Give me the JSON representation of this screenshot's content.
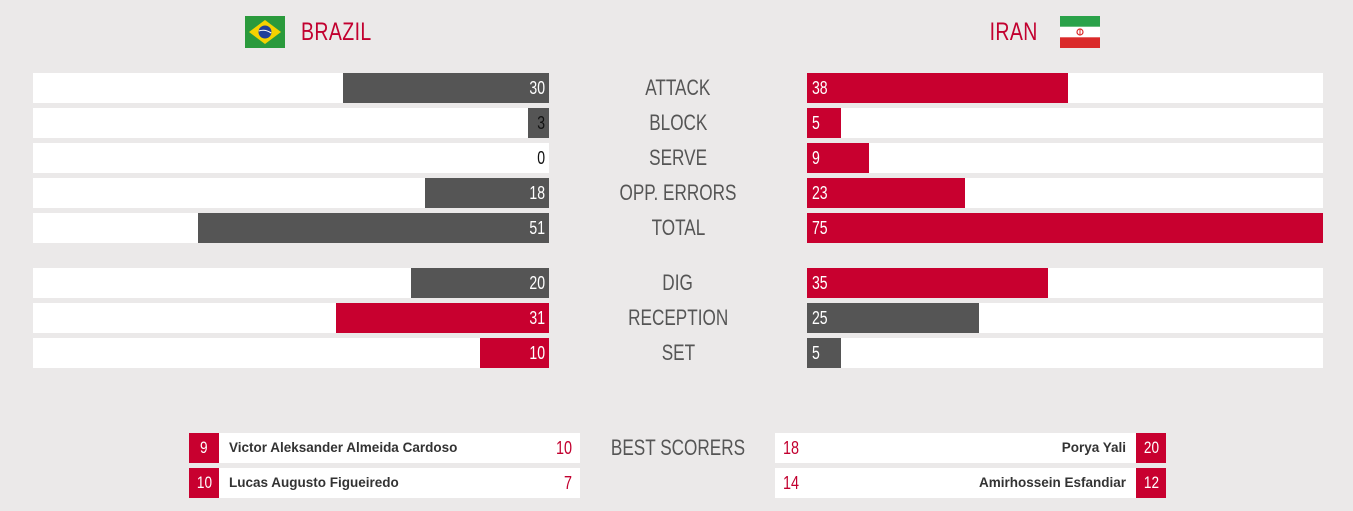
{
  "teams": {
    "home": {
      "name": "BRAZIL",
      "flag_icon": "brazil-flag-icon"
    },
    "away": {
      "name": "IRAN",
      "flag_icon": "iran-flag-icon"
    }
  },
  "colors": {
    "accent_red": "#c8002f",
    "bar_gray": "#555555",
    "background": "#ebe9e9"
  },
  "stats_max": 75,
  "stats": [
    {
      "label": "ATTACK",
      "home": "30",
      "away": "38",
      "home_color": "gray",
      "away_color": "red"
    },
    {
      "label": "BLOCK",
      "home": "3",
      "away": "5",
      "home_color": "gray",
      "away_color": "red"
    },
    {
      "label": "SERVE",
      "home": "0",
      "away": "9",
      "home_color": "gray",
      "away_color": "red"
    },
    {
      "label": "OPP. ERRORS",
      "home": "18",
      "away": "23",
      "home_color": "gray",
      "away_color": "red"
    },
    {
      "label": "TOTAL",
      "home": "51",
      "away": "75",
      "home_color": "gray",
      "away_color": "red"
    },
    {
      "label": "DIG",
      "home": "20",
      "away": "35",
      "home_color": "gray",
      "away_color": "red"
    },
    {
      "label": "RECEPTION",
      "home": "31",
      "away": "25",
      "home_color": "red",
      "away_color": "gray"
    },
    {
      "label": "SET",
      "home": "10",
      "away": "5",
      "home_color": "red",
      "away_color": "gray"
    }
  ],
  "best_scorers": {
    "label": "BEST SCORERS",
    "home": [
      {
        "number": "9",
        "name": "Victor Aleksander Almeida Cardoso",
        "points": "10"
      },
      {
        "number": "10",
        "name": "Lucas Augusto Figueiredo",
        "points": "7"
      }
    ],
    "away": [
      {
        "number": "20",
        "name": "Porya Yali",
        "points": "18"
      },
      {
        "number": "12",
        "name": "Amirhossein Esfandiar",
        "points": "14"
      }
    ]
  }
}
